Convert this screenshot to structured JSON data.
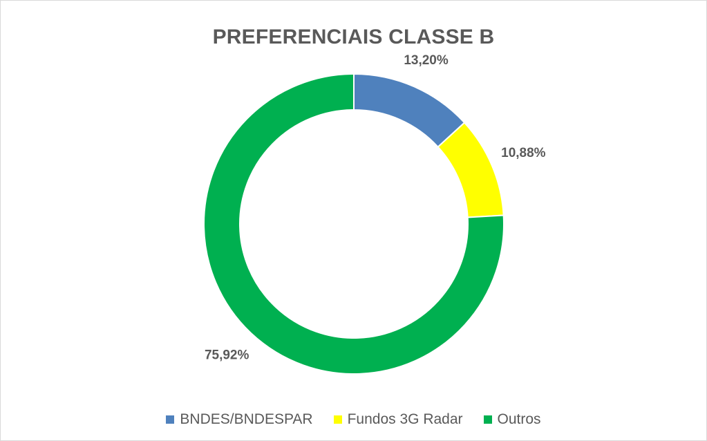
{
  "chart_data": {
    "type": "pie",
    "variant": "donut",
    "title": "PREFERENCIAIS CLASSE B",
    "legend_position": "bottom",
    "series": [
      {
        "name": "BNDES/BNDESPAR",
        "value": 13.2,
        "label": "13,20%",
        "color": "#4F81BD"
      },
      {
        "name": "Fundos 3G Radar",
        "value": 10.88,
        "label": "10,88%",
        "color": "#FFFF00"
      },
      {
        "name": "Outros",
        "value": 75.92,
        "label": "75,92%",
        "color": "#00B050"
      }
    ]
  }
}
